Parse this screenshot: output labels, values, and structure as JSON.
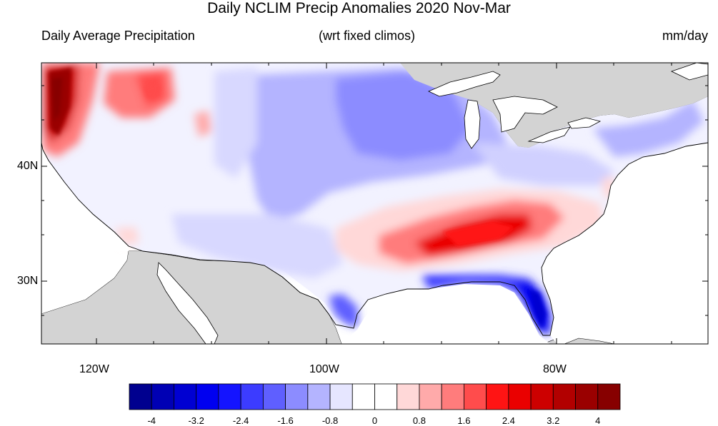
{
  "title": "Daily NCLIM Precip Anomalies 2020 Nov-Mar",
  "left_subtitle": "Daily Average Precipitation",
  "center_subtitle": "(wrt fixed climos)",
  "units": "mm/day",
  "lat_labels": [
    "40N",
    "30N"
  ],
  "lon_labels": [
    "120W",
    "100W",
    "80W"
  ],
  "colorbar": {
    "colors": [
      "#00008f",
      "#0000b4",
      "#0000d2",
      "#0000f0",
      "#1414ff",
      "#3c3cff",
      "#5f5fff",
      "#8c8cff",
      "#b4b4ff",
      "#e6e6ff",
      "#ffffff",
      "#ffffff",
      "#ffd8d8",
      "#ffaaaa",
      "#ff7c7c",
      "#ff4c4c",
      "#ff1414",
      "#ea0000",
      "#cd0000",
      "#b20000",
      "#9a0000",
      "#870000"
    ],
    "labels": [
      "-4",
      "-3.2",
      "-2.4",
      "-1.6",
      "-0.8",
      "0",
      "0.8",
      "1.6",
      "2.4",
      "3.2",
      "4"
    ]
  },
  "colors": {
    "land_outside": "#d3d3d3",
    "coast": "#000000"
  }
}
